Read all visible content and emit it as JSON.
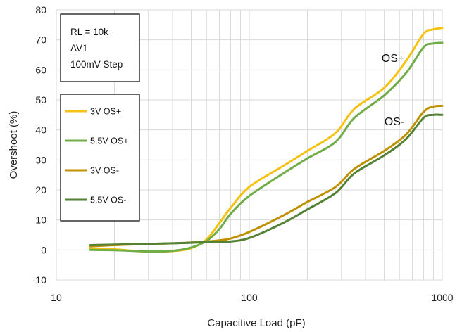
{
  "chart_data": {
    "type": "line",
    "xscale": "log",
    "xlim": [
      10,
      1000
    ],
    "ylim": [
      -10,
      80
    ],
    "xlabel": "Capacitive Load (pF)",
    "ylabel": "Overshoot (%)",
    "x_ticks": [
      10,
      100,
      1000
    ],
    "y_ticks": [
      -10,
      0,
      10,
      20,
      30,
      40,
      50,
      60,
      70,
      80
    ],
    "grid": true,
    "conditions": [
      "RL = 10k",
      "AV1",
      "100mV Step"
    ],
    "legend_position": "left",
    "annotations": [
      "OS+",
      "OS-"
    ],
    "series": [
      {
        "name": "3V OS+",
        "color": "#f5c211",
        "x": [
          15,
          20,
          30,
          40,
          50,
          60,
          70,
          80,
          100,
          150,
          200,
          280,
          350,
          500,
          650,
          800,
          900,
          1000
        ],
        "y": [
          0.5,
          0.2,
          -0.6,
          -0.4,
          0.6,
          3.5,
          9,
          14,
          21,
          28,
          33,
          39,
          47,
          54,
          63,
          72,
          73.5,
          74
        ]
      },
      {
        "name": "5.5V OS+",
        "color": "#70ad47",
        "x": [
          15,
          20,
          30,
          40,
          50,
          60,
          70,
          80,
          100,
          150,
          200,
          280,
          350,
          500,
          650,
          800,
          900,
          1000
        ],
        "y": [
          0,
          -0.1,
          -0.5,
          -0.3,
          0.8,
          3,
          7,
          12,
          18,
          25.5,
          30.5,
          36,
          44,
          51.5,
          59,
          67.5,
          68.8,
          69
        ]
      },
      {
        "name": "3V OS-",
        "color": "#bf9000",
        "x": [
          15,
          20,
          30,
          40,
          50,
          60,
          70,
          80,
          100,
          150,
          200,
          280,
          350,
          500,
          650,
          800,
          900,
          1000
        ],
        "y": [
          1.2,
          1.6,
          2,
          2.2,
          2.5,
          2.8,
          3.2,
          3.8,
          6,
          11.5,
          16,
          21,
          27,
          33,
          38.5,
          46,
          47.8,
          48
        ]
      },
      {
        "name": "5.5V OS-",
        "color": "#548235",
        "x": [
          15,
          20,
          30,
          40,
          50,
          60,
          70,
          80,
          100,
          150,
          200,
          280,
          350,
          500,
          650,
          800,
          900,
          1000
        ],
        "y": [
          1.6,
          1.8,
          2,
          2.2,
          2.4,
          2.6,
          2.7,
          2.8,
          4,
          9,
          13.5,
          19,
          25.5,
          31.5,
          37,
          44,
          45,
          45
        ]
      }
    ]
  }
}
